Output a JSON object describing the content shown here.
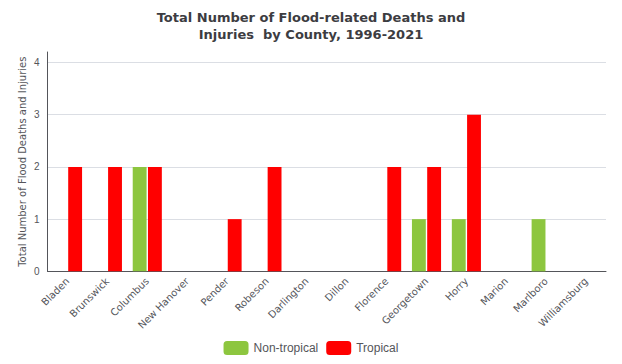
{
  "chart_data": {
    "type": "bar",
    "title": "Total Number of Flood-related Deaths and\nInjuries  by County, 1996-2021",
    "ylabel": "Total Number of Flood Deaths and Injuries",
    "categories": [
      "Bladen",
      "Brunswick",
      "Columbus",
      "New Hanover",
      "Pender",
      "Robeson",
      "Darlington",
      "Dillon",
      "Florence",
      "Georgetown",
      "Horry",
      "Marion",
      "Marlboro",
      "Williamsburg"
    ],
    "series": [
      {
        "name": "Non-tropical",
        "color": "#8dc63f",
        "values": [
          0,
          0,
          2,
          0,
          0,
          0,
          0,
          0,
          0,
          1,
          1,
          0,
          1,
          0
        ]
      },
      {
        "name": "Tropical",
        "color": "#ff0000",
        "values": [
          2,
          2,
          2,
          0,
          1,
          2,
          0,
          0,
          2,
          2,
          3,
          0,
          0,
          0
        ]
      }
    ],
    "ylim": [
      0,
      4.2
    ],
    "yticks": [
      0,
      1,
      2,
      3,
      4
    ],
    "grid": true,
    "legend": "bottom"
  }
}
